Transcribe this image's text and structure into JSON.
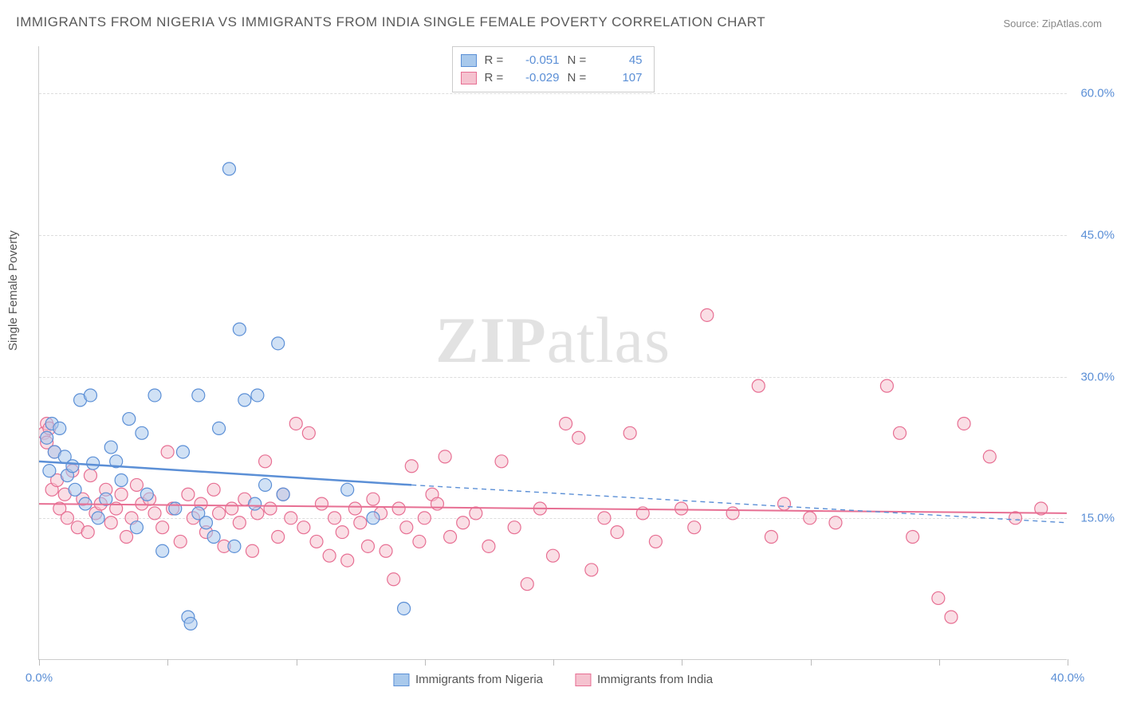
{
  "title": "IMMIGRANTS FROM NIGERIA VS IMMIGRANTS FROM INDIA SINGLE FEMALE POVERTY CORRELATION CHART",
  "source": "Source: ZipAtlas.com",
  "y_axis_label": "Single Female Poverty",
  "watermark": "ZIPatlas",
  "chart": {
    "type": "scatter",
    "background_color": "#ffffff",
    "grid_color": "#dddddd",
    "axis_color": "#cccccc",
    "tick_label_color": "#5b8fd6",
    "xlim": [
      0,
      40
    ],
    "ylim": [
      0,
      65
    ],
    "x_ticks": [
      0,
      5,
      10,
      15,
      20,
      25,
      30,
      35,
      40
    ],
    "x_tick_labels": {
      "0": "0.0%",
      "40": "40.0%"
    },
    "y_ticks": [
      15,
      30,
      45,
      60
    ],
    "y_tick_labels": {
      "15": "15.0%",
      "30": "30.0%",
      "45": "45.0%",
      "60": "60.0%"
    },
    "marker_radius": 8,
    "marker_opacity": 0.55,
    "marker_stroke_width": 1.2
  },
  "series": {
    "nigeria": {
      "label": "Immigrants from Nigeria",
      "fill_color": "#a9c9ec",
      "stroke_color": "#5b8fd6",
      "R": "-0.051",
      "N": "45",
      "trend": {
        "x1": 0,
        "y1": 21.0,
        "x2": 14.5,
        "y2": 18.5,
        "x3": 40,
        "y3": 14.5,
        "solid_width": 2.5,
        "dash_pattern": "6 5"
      },
      "points": [
        [
          0.3,
          23.5
        ],
        [
          0.4,
          20.0
        ],
        [
          0.5,
          25.0
        ],
        [
          0.6,
          22.0
        ],
        [
          0.8,
          24.5
        ],
        [
          1.0,
          21.5
        ],
        [
          1.1,
          19.5
        ],
        [
          1.3,
          20.5
        ],
        [
          1.4,
          18.0
        ],
        [
          1.6,
          27.5
        ],
        [
          1.8,
          16.5
        ],
        [
          2.0,
          28.0
        ],
        [
          2.1,
          20.8
        ],
        [
          2.3,
          15.0
        ],
        [
          2.6,
          17.0
        ],
        [
          2.8,
          22.5
        ],
        [
          3.0,
          21.0
        ],
        [
          3.2,
          19.0
        ],
        [
          3.5,
          25.5
        ],
        [
          3.8,
          14.0
        ],
        [
          4.0,
          24.0
        ],
        [
          4.2,
          17.5
        ],
        [
          4.5,
          28.0
        ],
        [
          4.8,
          11.5
        ],
        [
          5.3,
          16.0
        ],
        [
          5.6,
          22.0
        ],
        [
          5.8,
          4.5
        ],
        [
          5.9,
          3.8
        ],
        [
          6.2,
          15.5
        ],
        [
          6.2,
          28.0
        ],
        [
          6.5,
          14.5
        ],
        [
          6.8,
          13.0
        ],
        [
          7.0,
          24.5
        ],
        [
          7.4,
          52.0
        ],
        [
          7.6,
          12.0
        ],
        [
          7.8,
          35.0
        ],
        [
          8.0,
          27.5
        ],
        [
          8.4,
          16.5
        ],
        [
          8.5,
          28.0
        ],
        [
          8.8,
          18.5
        ],
        [
          9.3,
          33.5
        ],
        [
          9.5,
          17.5
        ],
        [
          12.0,
          18.0
        ],
        [
          13.0,
          15.0
        ],
        [
          14.2,
          5.4
        ]
      ]
    },
    "india": {
      "label": "Immigrants from India",
      "fill_color": "#f5c2cf",
      "stroke_color": "#e76f93",
      "R": "-0.029",
      "N": "107",
      "trend": {
        "x1": 0,
        "y1": 16.5,
        "x2": 40,
        "y2": 15.5,
        "solid_width": 2.0
      },
      "points": [
        [
          0.2,
          24.0
        ],
        [
          0.3,
          23.0
        ],
        [
          0.3,
          25.0
        ],
        [
          0.4,
          24.5
        ],
        [
          0.5,
          18.0
        ],
        [
          0.6,
          22.0
        ],
        [
          0.7,
          19.0
        ],
        [
          0.8,
          16.0
        ],
        [
          1.0,
          17.5
        ],
        [
          1.1,
          15.0
        ],
        [
          1.3,
          20.0
        ],
        [
          1.5,
          14.0
        ],
        [
          1.7,
          17.0
        ],
        [
          1.9,
          13.5
        ],
        [
          2.0,
          19.5
        ],
        [
          2.2,
          15.5
        ],
        [
          2.4,
          16.5
        ],
        [
          2.6,
          18.0
        ],
        [
          2.8,
          14.5
        ],
        [
          3.0,
          16.0
        ],
        [
          3.2,
          17.5
        ],
        [
          3.4,
          13.0
        ],
        [
          3.6,
          15.0
        ],
        [
          3.8,
          18.5
        ],
        [
          4.0,
          16.5
        ],
        [
          4.3,
          17.0
        ],
        [
          4.5,
          15.5
        ],
        [
          4.8,
          14.0
        ],
        [
          5.0,
          22.0
        ],
        [
          5.2,
          16.0
        ],
        [
          5.5,
          12.5
        ],
        [
          5.8,
          17.5
        ],
        [
          6.0,
          15.0
        ],
        [
          6.3,
          16.5
        ],
        [
          6.5,
          13.5
        ],
        [
          6.8,
          18.0
        ],
        [
          7.0,
          15.5
        ],
        [
          7.2,
          12.0
        ],
        [
          7.5,
          16.0
        ],
        [
          7.8,
          14.5
        ],
        [
          8.0,
          17.0
        ],
        [
          8.3,
          11.5
        ],
        [
          8.5,
          15.5
        ],
        [
          8.8,
          21.0
        ],
        [
          9.0,
          16.0
        ],
        [
          9.3,
          13.0
        ],
        [
          9.5,
          17.5
        ],
        [
          9.8,
          15.0
        ],
        [
          10.0,
          25.0
        ],
        [
          10.3,
          14.0
        ],
        [
          10.5,
          24.0
        ],
        [
          10.8,
          12.5
        ],
        [
          11.0,
          16.5
        ],
        [
          11.3,
          11.0
        ],
        [
          11.5,
          15.0
        ],
        [
          11.8,
          13.5
        ],
        [
          12.0,
          10.5
        ],
        [
          12.3,
          16.0
        ],
        [
          12.5,
          14.5
        ],
        [
          12.8,
          12.0
        ],
        [
          13.0,
          17.0
        ],
        [
          13.3,
          15.5
        ],
        [
          13.5,
          11.5
        ],
        [
          13.8,
          8.5
        ],
        [
          14.0,
          16.0
        ],
        [
          14.3,
          14.0
        ],
        [
          14.5,
          20.5
        ],
        [
          14.8,
          12.5
        ],
        [
          15.0,
          15.0
        ],
        [
          15.3,
          17.5
        ],
        [
          15.5,
          16.5
        ],
        [
          15.8,
          21.5
        ],
        [
          16.0,
          13.0
        ],
        [
          16.5,
          14.5
        ],
        [
          17.0,
          15.5
        ],
        [
          17.5,
          12.0
        ],
        [
          18.0,
          21.0
        ],
        [
          18.5,
          14.0
        ],
        [
          19.0,
          8.0
        ],
        [
          19.5,
          16.0
        ],
        [
          20.0,
          11.0
        ],
        [
          20.5,
          25.0
        ],
        [
          21.0,
          23.5
        ],
        [
          21.5,
          9.5
        ],
        [
          22.0,
          15.0
        ],
        [
          22.5,
          13.5
        ],
        [
          23.0,
          24.0
        ],
        [
          23.5,
          15.5
        ],
        [
          24.0,
          12.5
        ],
        [
          25.0,
          16.0
        ],
        [
          25.5,
          14.0
        ],
        [
          26.0,
          36.5
        ],
        [
          27.0,
          15.5
        ],
        [
          28.0,
          29.0
        ],
        [
          28.5,
          13.0
        ],
        [
          29.0,
          16.5
        ],
        [
          30.0,
          15.0
        ],
        [
          31.0,
          14.5
        ],
        [
          33.0,
          29.0
        ],
        [
          33.5,
          24.0
        ],
        [
          34.0,
          13.0
        ],
        [
          35.0,
          6.5
        ],
        [
          35.5,
          4.5
        ],
        [
          36.0,
          25.0
        ],
        [
          37.0,
          21.5
        ],
        [
          38.0,
          15.0
        ],
        [
          39.0,
          16.0
        ]
      ]
    }
  },
  "stats_box": {
    "r_label": "R =",
    "n_label": "N ="
  }
}
